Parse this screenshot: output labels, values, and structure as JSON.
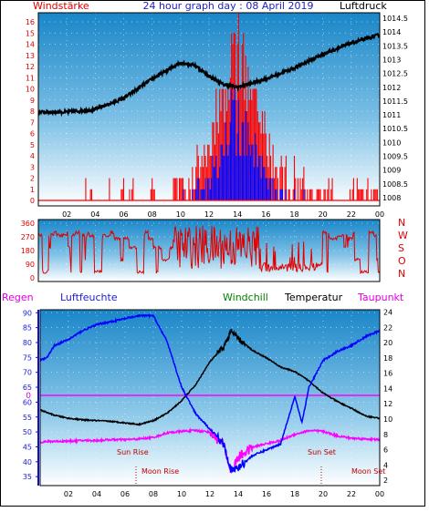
{
  "header": {
    "windstaerke": "Windstärke",
    "title": "24 hour graph day : 08 April 2019",
    "luftdruck": "Luftdruck"
  },
  "panel3": {
    "regen": "Regen",
    "luftfeuchte": "Luftfeuchte",
    "windchill": "Windchill",
    "temperatur": "Temperatur",
    "taupunkt": "Taupunkt",
    "sun_rise": "Sun Rise",
    "moon_rise": "Moon Rise",
    "sun_set": "Sun Set",
    "moon_set": "Moon Set",
    "rain_zero_label": "0"
  },
  "colors": {
    "windstaerke": "#e00000",
    "title": "#2020c0",
    "regen": "#e000e0",
    "luftfeuchte": "#2020d0",
    "windchill": "#008000",
    "temperatur": "#000000",
    "taupunkt": "#e000e0",
    "annotation": "#c00000",
    "pressure_line": "#000000",
    "wind_gust": "#ff0000",
    "wind_avg": "#0000ff",
    "direction": "#e00000",
    "humidity": "#0000ff",
    "dewpoint": "#ff00ff",
    "temperature": "#000000"
  },
  "chart_data": [
    {
      "type": "line",
      "name": "wind-pressure",
      "x_ticks": [
        "02",
        "04",
        "06",
        "08",
        "10",
        "12",
        "14",
        "16",
        "18",
        "20",
        "22",
        "00"
      ],
      "left_axis": {
        "label": "Windstärke",
        "ticks": [
          0,
          1,
          2,
          3,
          4,
          5,
          6,
          7,
          8,
          9,
          10,
          11,
          12,
          13,
          14,
          15,
          16
        ],
        "ylim": [
          0,
          16
        ]
      },
      "right_axis": {
        "label": "Luftdruck",
        "ticks": [
          "1008",
          "1008.5",
          "1009",
          "1009.5",
          "1010",
          "1010.5",
          "1011",
          "1011.5",
          "1012",
          "1012.5",
          "1013",
          "1013.5",
          "1014",
          "1014.5"
        ],
        "ylim": [
          1007.7,
          1014.7
        ]
      },
      "series": [
        {
          "name": "Luftdruck",
          "x": [
            0,
            2,
            4,
            6,
            8,
            10,
            11,
            12,
            13,
            14,
            16,
            18,
            20,
            22,
            24
          ],
          "y": [
            1011.1,
            1011.1,
            1011.2,
            1011.6,
            1012.3,
            1012.9,
            1012.8,
            1012.4,
            1012.1,
            1012.0,
            1012.3,
            1012.7,
            1013.2,
            1013.6,
            1013.9
          ]
        }
      ]
    },
    {
      "type": "line",
      "name": "wind-direction",
      "left_axis": {
        "ticks": [
          0,
          90,
          180,
          270,
          360
        ],
        "ylim": [
          0,
          360
        ]
      },
      "right_axis": {
        "ticks": [
          "N",
          "W",
          "S",
          "O",
          "N"
        ]
      }
    },
    {
      "type": "line",
      "name": "humidity-temperature",
      "x_ticks": [
        "02",
        "04",
        "06",
        "08",
        "10",
        "12",
        "14",
        "16",
        "18",
        "20",
        "22",
        "00"
      ],
      "left_axis": {
        "label": "Luftfeuchte",
        "ticks": [
          35,
          40,
          45,
          50,
          55,
          60,
          65,
          70,
          75,
          80,
          85,
          90
        ],
        "ylim": [
          32,
          91
        ]
      },
      "right_axis": {
        "label": "Temperatur",
        "ticks": [
          2,
          4,
          6,
          8,
          10,
          12,
          14,
          16,
          18,
          20,
          22,
          24
        ],
        "ylim": [
          1.3,
          24.3
        ]
      },
      "series": [
        {
          "name": "Luftfeuchte",
          "x": [
            0,
            0.5,
            1,
            2,
            3,
            4,
            5,
            6,
            7,
            8,
            9,
            10,
            11,
            12,
            13,
            13.5,
            14,
            15,
            16,
            17,
            18,
            18.5,
            19,
            20,
            21,
            22,
            23,
            24
          ],
          "y": [
            74,
            75,
            79,
            81,
            84,
            86,
            87,
            88,
            89,
            89,
            80,
            65,
            56,
            51,
            46,
            37,
            38,
            42,
            44,
            46,
            62,
            53,
            65,
            74,
            77,
            79,
            82,
            84
          ]
        },
        {
          "name": "Temperatur",
          "x": [
            0,
            1,
            2,
            3,
            4,
            5,
            6,
            7,
            8,
            9,
            10,
            11,
            12,
            13,
            13.5,
            14,
            15,
            16,
            17,
            18,
            19,
            20,
            21,
            22,
            23,
            24
          ],
          "y": [
            11.2,
            10.5,
            10.1,
            9.9,
            9.8,
            9.7,
            9.5,
            9.3,
            9.8,
            10.8,
            12.4,
            14.5,
            17.5,
            19.5,
            21.5,
            20.5,
            19,
            18,
            16.8,
            16.2,
            15,
            13.4,
            12.3,
            11.4,
            10.4,
            10.1
          ]
        },
        {
          "name": "Taupunkt",
          "x": [
            0,
            1,
            2,
            3,
            4,
            5,
            6,
            7,
            8,
            9,
            10,
            11,
            12,
            13,
            13.5,
            14,
            15,
            16,
            17,
            18,
            19,
            20,
            21,
            22,
            23,
            24
          ],
          "y": [
            7,
            7.1,
            7.1,
            7.2,
            7.2,
            7.3,
            7.3,
            7.4,
            7.6,
            8.2,
            8.4,
            8.5,
            8.3,
            6.5,
            3,
            5,
            6.3,
            6.8,
            7.2,
            8,
            8.5,
            8.4,
            7.8,
            7.5,
            7.4,
            7.3
          ]
        }
      ]
    }
  ]
}
